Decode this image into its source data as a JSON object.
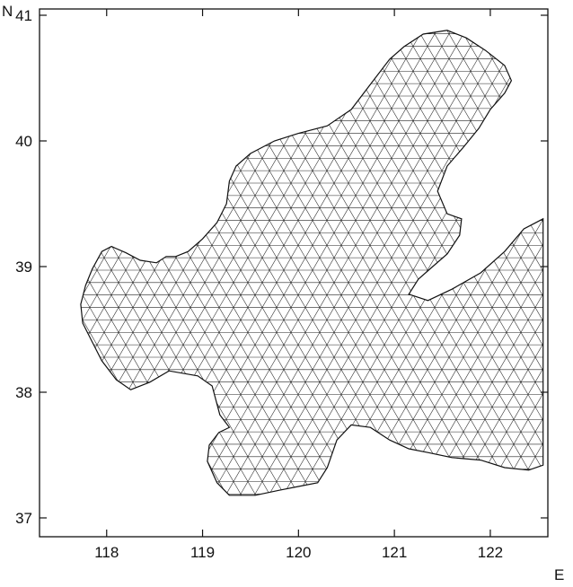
{
  "map": {
    "x_axis": {
      "ticks": [
        {
          "value": 118,
          "label": "118"
        },
        {
          "value": 119,
          "label": "119"
        },
        {
          "value": 120,
          "label": "120"
        },
        {
          "value": 121,
          "label": "121"
        },
        {
          "value": 122,
          "label": "122"
        }
      ],
      "unit_label": "E",
      "range": [
        117.3,
        122.6
      ]
    },
    "y_axis": {
      "ticks": [
        {
          "value": 37,
          "label": "37"
        },
        {
          "value": 38,
          "label": "38"
        },
        {
          "value": 39,
          "label": "39"
        },
        {
          "value": 40,
          "label": "40"
        },
        {
          "value": 41,
          "label": "41"
        }
      ],
      "unit_label": "N",
      "range": [
        36.85,
        41.05
      ]
    },
    "mesh": {
      "stroke_color": "#222222",
      "boundary": [
        [
          119.28,
          37.18
        ],
        [
          119.15,
          37.28
        ],
        [
          119.05,
          37.45
        ],
        [
          119.07,
          37.58
        ],
        [
          119.17,
          37.68
        ],
        [
          119.28,
          37.72
        ],
        [
          119.18,
          37.82
        ],
        [
          119.1,
          38.05
        ],
        [
          118.95,
          38.13
        ],
        [
          118.65,
          38.17
        ],
        [
          118.45,
          38.08
        ],
        [
          118.25,
          38.02
        ],
        [
          118.1,
          38.1
        ],
        [
          117.95,
          38.25
        ],
        [
          117.85,
          38.4
        ],
        [
          117.75,
          38.55
        ],
        [
          117.73,
          38.7
        ],
        [
          117.78,
          38.85
        ],
        [
          117.85,
          38.98
        ],
        [
          117.95,
          39.12
        ],
        [
          118.05,
          39.16
        ],
        [
          118.2,
          39.11
        ],
        [
          118.35,
          39.05
        ],
        [
          118.52,
          39.03
        ],
        [
          118.62,
          39.08
        ],
        [
          118.72,
          39.08
        ],
        [
          118.85,
          39.12
        ],
        [
          119.0,
          39.22
        ],
        [
          119.15,
          39.35
        ],
        [
          119.25,
          39.5
        ],
        [
          119.28,
          39.68
        ],
        [
          119.35,
          39.8
        ],
        [
          119.5,
          39.9
        ],
        [
          119.75,
          40.0
        ],
        [
          120.0,
          40.06
        ],
        [
          120.3,
          40.12
        ],
        [
          120.55,
          40.25
        ],
        [
          120.75,
          40.45
        ],
        [
          120.95,
          40.65
        ],
        [
          121.1,
          40.75
        ],
        [
          121.3,
          40.85
        ],
        [
          121.55,
          40.88
        ],
        [
          121.75,
          40.82
        ],
        [
          121.95,
          40.72
        ],
        [
          122.15,
          40.6
        ],
        [
          122.22,
          40.48
        ],
        [
          122.15,
          40.38
        ],
        [
          122.0,
          40.25
        ],
        [
          121.88,
          40.1
        ],
        [
          121.72,
          39.95
        ],
        [
          121.55,
          39.8
        ],
        [
          121.45,
          39.6
        ],
        [
          121.55,
          39.42
        ],
        [
          121.7,
          39.38
        ],
        [
          121.68,
          39.25
        ],
        [
          121.55,
          39.1
        ],
        [
          121.4,
          39.0
        ],
        [
          121.25,
          38.9
        ],
        [
          121.15,
          38.78
        ],
        [
          121.35,
          38.73
        ],
        [
          121.6,
          38.82
        ],
        [
          121.9,
          38.95
        ],
        [
          122.15,
          39.12
        ],
        [
          122.35,
          39.3
        ],
        [
          122.55,
          39.38
        ],
        [
          122.55,
          37.42
        ],
        [
          122.4,
          37.38
        ],
        [
          122.15,
          37.4
        ],
        [
          121.9,
          37.46
        ],
        [
          121.6,
          37.48
        ],
        [
          121.35,
          37.52
        ],
        [
          121.15,
          37.55
        ],
        [
          120.95,
          37.62
        ],
        [
          120.75,
          37.72
        ],
        [
          120.55,
          37.74
        ],
        [
          120.4,
          37.62
        ],
        [
          120.3,
          37.4
        ],
        [
          120.2,
          37.28
        ],
        [
          120.0,
          37.25
        ],
        [
          119.8,
          37.22
        ],
        [
          119.55,
          37.18
        ]
      ]
    }
  }
}
